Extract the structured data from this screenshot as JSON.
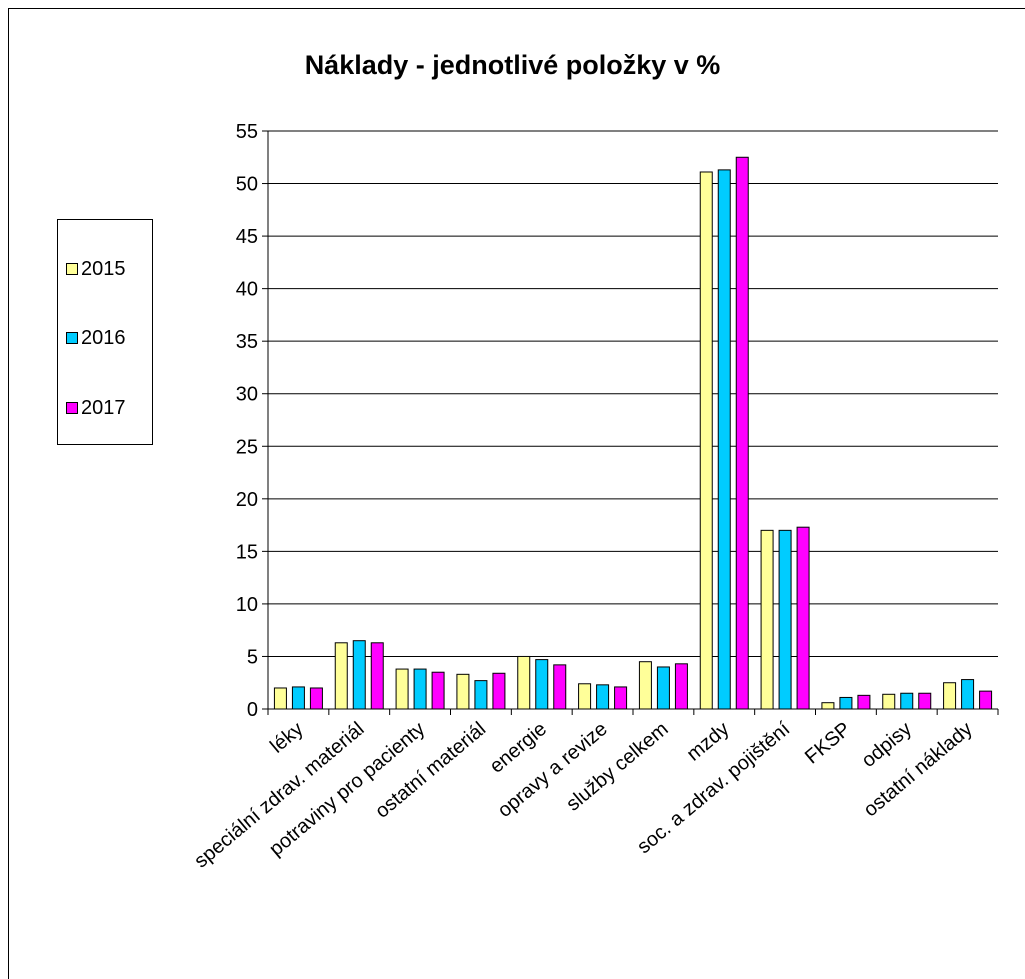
{
  "chart_data": {
    "type": "bar",
    "title": "Náklady - jednotlivé položky v %",
    "xlabel": "",
    "ylabel": "",
    "ylim": [
      0,
      55
    ],
    "yticks": [
      0,
      5,
      10,
      15,
      20,
      25,
      30,
      35,
      40,
      45,
      50,
      55
    ],
    "grid": true,
    "legend_position": "left",
    "categories": [
      "léky",
      "speciální zdrav. materiál",
      "potraviny pro pacienty",
      "ostatní materiál",
      "energie",
      "opravy a revize",
      "služby celkem",
      "mzdy",
      "soc. a zdrav. pojištění",
      "FKSP",
      "odpisy",
      "ostatní náklady"
    ],
    "series": [
      {
        "name": "2015",
        "color": "#FFFF99",
        "values": [
          2.0,
          6.3,
          3.8,
          3.3,
          5.0,
          2.4,
          4.5,
          51.1,
          17.0,
          0.6,
          1.4,
          2.5
        ]
      },
      {
        "name": "2016",
        "color": "#00CCFF",
        "values": [
          2.1,
          6.5,
          3.8,
          2.7,
          4.7,
          2.3,
          4.0,
          51.3,
          17.0,
          1.1,
          1.5,
          2.8
        ]
      },
      {
        "name": "2017",
        "color": "#FF00FF",
        "values": [
          2.0,
          6.3,
          3.5,
          3.4,
          4.2,
          2.1,
          4.3,
          52.5,
          17.3,
          1.3,
          1.5,
          1.7
        ]
      }
    ]
  }
}
